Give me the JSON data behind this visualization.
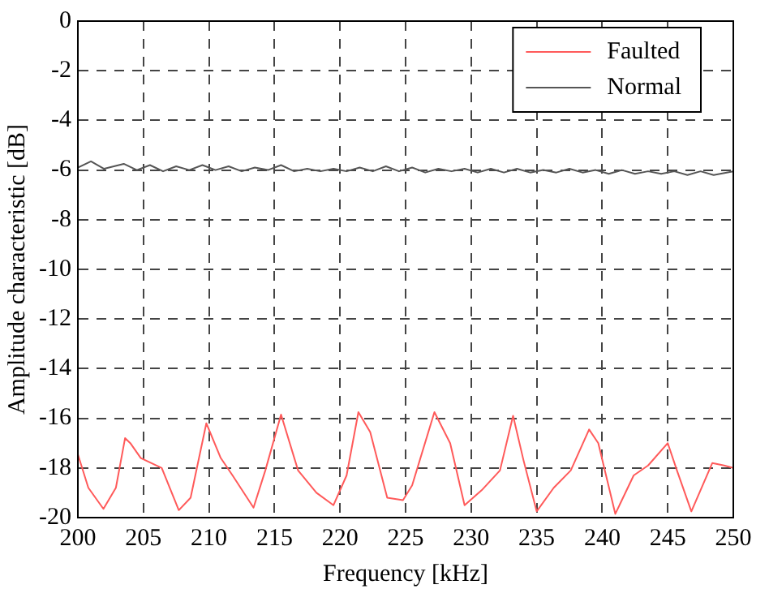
{
  "chart_data": {
    "type": "line",
    "xlabel": "Frequency [kHz]",
    "ylabel": "Amplitude characteristic [dB]",
    "xlim": [
      200,
      250
    ],
    "xticks": [
      200,
      205,
      210,
      215,
      220,
      225,
      230,
      235,
      240,
      245,
      250
    ],
    "ylim": [
      -20,
      0
    ],
    "yticks": [
      -20,
      -18,
      -16,
      -14,
      -12,
      -10,
      -8,
      -6,
      -4,
      -2,
      0
    ],
    "grid": true,
    "legend": "top right",
    "marker": "none",
    "line_style": "solid",
    "series": [
      {
        "name": "Faulted",
        "color": "#ff5a5a",
        "x": [
          200,
          200.8,
          201.95,
          202.9,
          203.6,
          204,
          204.8,
          206.4,
          207.7,
          208.6,
          209.8,
          210.9,
          211.8,
          213.4,
          214.3,
          215.5,
          216.8,
          218.2,
          219.5,
          220.5,
          221.4,
          222.3,
          223.6,
          224.8,
          225.5,
          227.2,
          228.4,
          229.5,
          230.8,
          232.2,
          233.2,
          234,
          235,
          236.3,
          237.6,
          239,
          239.7,
          241,
          242.4,
          243.5,
          245,
          245.7,
          246.8,
          248.4,
          249.3,
          250
        ],
        "values": [
          -17.45,
          -18.8,
          -19.65,
          -18.8,
          -16.8,
          -17.0,
          -17.6,
          -18.0,
          -19.7,
          -19.2,
          -16.2,
          -17.6,
          -18.3,
          -19.6,
          -18.1,
          -15.85,
          -18.1,
          -19.0,
          -19.5,
          -18.3,
          -15.75,
          -16.55,
          -19.2,
          -19.3,
          -18.7,
          -15.75,
          -17.0,
          -19.5,
          -18.9,
          -18.1,
          -15.9,
          -17.7,
          -19.75,
          -18.8,
          -18.1,
          -16.45,
          -17.0,
          -19.85,
          -18.3,
          -17.9,
          -17.0,
          -18.1,
          -19.75,
          -17.8,
          -17.9,
          -18.0
        ]
      },
      {
        "name": "Normal",
        "color": "#555555",
        "x": [
          200,
          201,
          202,
          203.5,
          204.5,
          205.5,
          206.5,
          207.5,
          208.5,
          209.5,
          210.5,
          211.5,
          212.5,
          213.5,
          214.5,
          215.5,
          216.5,
          217.5,
          218.5,
          219.5,
          220.5,
          221.5,
          222.5,
          223.5,
          224.5,
          225.5,
          226.5,
          227.5,
          228.5,
          229.5,
          230.5,
          231.5,
          232.5,
          233.5,
          234.5,
          235.5,
          236.5,
          237.5,
          238.5,
          239.5,
          240.5,
          241.5,
          242.5,
          243.5,
          244.5,
          245.5,
          246.5,
          247.5,
          248.5,
          250
        ],
        "values": [
          -5.9,
          -5.65,
          -5.95,
          -5.75,
          -6.0,
          -5.8,
          -6.05,
          -5.85,
          -6.0,
          -5.8,
          -6.0,
          -5.85,
          -6.05,
          -5.9,
          -6.0,
          -5.8,
          -6.05,
          -5.95,
          -6.05,
          -5.95,
          -6.05,
          -5.9,
          -6.05,
          -5.85,
          -6.05,
          -5.9,
          -6.1,
          -5.95,
          -6.05,
          -5.95,
          -6.1,
          -5.95,
          -6.1,
          -5.95,
          -6.1,
          -6.0,
          -6.1,
          -5.95,
          -6.1,
          -6.0,
          -6.15,
          -6.0,
          -6.15,
          -6.05,
          -6.15,
          -6.05,
          -6.2,
          -6.05,
          -6.2,
          -6.05
        ]
      }
    ]
  }
}
